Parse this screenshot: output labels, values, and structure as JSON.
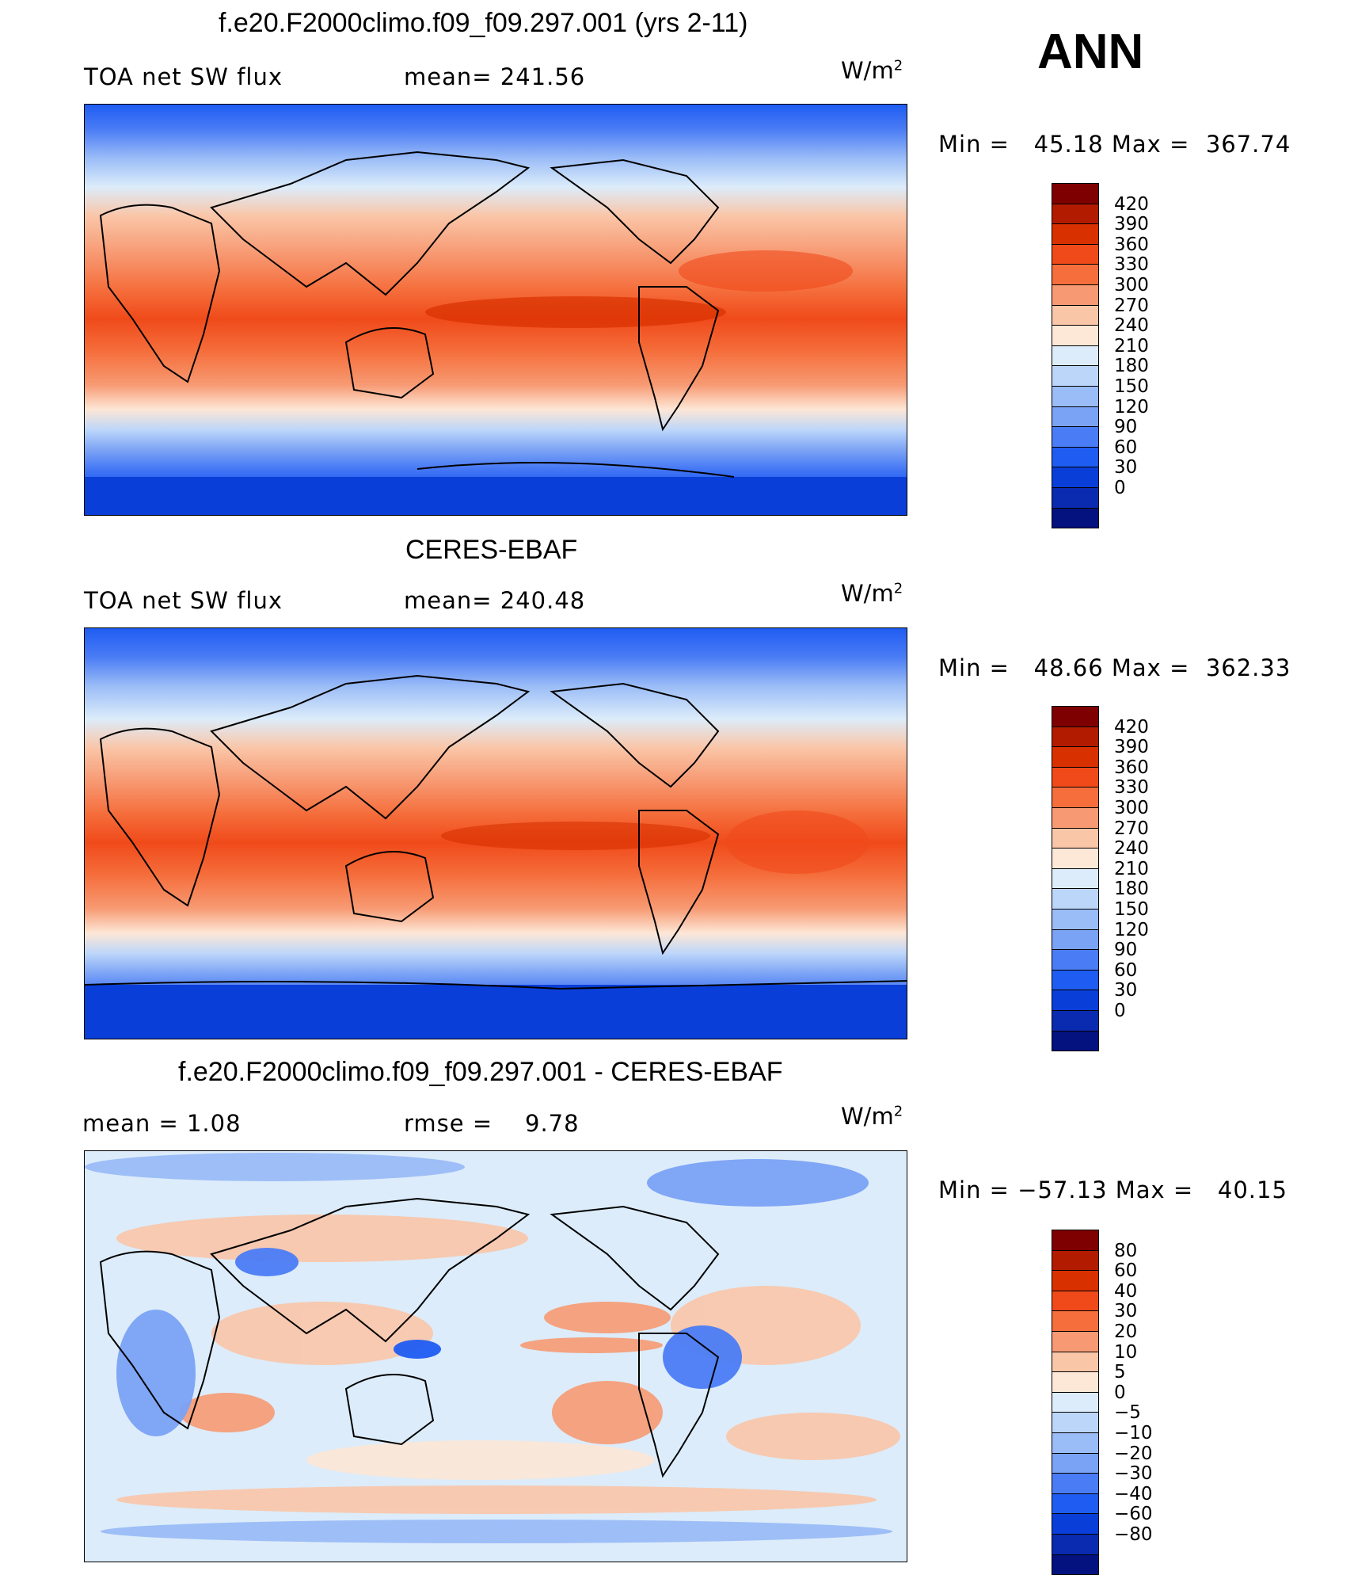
{
  "season": "ANN",
  "units": "W/m",
  "units_exp": "2",
  "panels": [
    {
      "title": "f.e20.F2000climo.f09_f09.297.001 (yrs 2-11)",
      "left_label": "TOA net SW flux",
      "stat_label": "mean= 241.56",
      "min_label": "Min =",
      "min_value": "45.18",
      "max_label": "Max =",
      "max_value": "367.74",
      "cbar_colors": [
        "#7f0000",
        "#b31b00",
        "#d93000",
        "#f04a1a",
        "#f56e3c",
        "#f79a73",
        "#fac6a8",
        "#fde7d6",
        "#dcecfa",
        "#bcd6fa",
        "#9abcf7",
        "#7aa2f5",
        "#4a7cf5",
        "#1f5cf2",
        "#0a3ed8",
        "#0a2bb0",
        "#04127f"
      ],
      "cbar_ticks": [
        "420",
        "390",
        "360",
        "330",
        "300",
        "270",
        "240",
        "210",
        "180",
        "150",
        "120",
        "90",
        "60",
        "30",
        "0"
      ]
    },
    {
      "title": "CERES-EBAF",
      "left_label": "TOA net SW flux",
      "stat_label": "mean= 240.48",
      "min_label": "Min =",
      "min_value": "48.66",
      "max_label": "Max =",
      "max_value": "362.33",
      "cbar_colors": [
        "#7f0000",
        "#b31b00",
        "#d93000",
        "#f04a1a",
        "#f56e3c",
        "#f79a73",
        "#fac6a8",
        "#fde7d6",
        "#dcecfa",
        "#bcd6fa",
        "#9abcf7",
        "#7aa2f5",
        "#4a7cf5",
        "#1f5cf2",
        "#0a3ed8",
        "#0a2bb0",
        "#04127f"
      ],
      "cbar_ticks": [
        "420",
        "390",
        "360",
        "330",
        "300",
        "270",
        "240",
        "210",
        "180",
        "150",
        "120",
        "90",
        "60",
        "30",
        "0"
      ]
    },
    {
      "title": "f.e20.F2000climo.f09_f09.297.001 - CERES-EBAF",
      "left_label": "mean =    1.08",
      "stat_label": "rmse =    9.78",
      "min_label": "Min =",
      "min_value": "−57.13",
      "max_label": "Max =",
      "max_value": "40.15",
      "cbar_colors": [
        "#7f0000",
        "#b31b00",
        "#d93000",
        "#f04a1a",
        "#f56e3c",
        "#f79a73",
        "#fac6a8",
        "#fde7d6",
        "#dcecfa",
        "#bcd6fa",
        "#9abcf7",
        "#7aa2f5",
        "#4a7cf5",
        "#1f5cf2",
        "#0a3ed8",
        "#0a2bb0",
        "#04127f"
      ],
      "cbar_ticks": [
        "80",
        "60",
        "40",
        "30",
        "20",
        "10",
        "5",
        "0",
        "−5",
        "−10",
        "−20",
        "−30",
        "−40",
        "−60",
        "−80"
      ]
    }
  ],
  "chart_data": [
    {
      "type": "heatmap",
      "title": "f.e20.F2000climo.f09_f09.297.001 (yrs 2-11)",
      "variable": "TOA net SW flux",
      "units": "W/m2",
      "mean": 241.56,
      "min": 45.18,
      "max": 367.74,
      "levels": [
        0,
        30,
        60,
        90,
        120,
        150,
        180,
        210,
        240,
        270,
        300,
        330,
        360,
        390,
        420
      ]
    },
    {
      "type": "heatmap",
      "title": "CERES-EBAF",
      "variable": "TOA net SW flux",
      "units": "W/m2",
      "mean": 240.48,
      "min": 48.66,
      "max": 362.33,
      "levels": [
        0,
        30,
        60,
        90,
        120,
        150,
        180,
        210,
        240,
        270,
        300,
        330,
        360,
        390,
        420
      ]
    },
    {
      "type": "heatmap",
      "title": "f.e20.F2000climo.f09_f09.297.001 - CERES-EBAF",
      "units": "W/m2",
      "mean": 1.08,
      "rmse": 9.78,
      "min": -57.13,
      "max": 40.15,
      "levels": [
        -80,
        -60,
        -40,
        -30,
        -20,
        -10,
        -5,
        0,
        5,
        10,
        20,
        30,
        40,
        60,
        80
      ]
    }
  ]
}
